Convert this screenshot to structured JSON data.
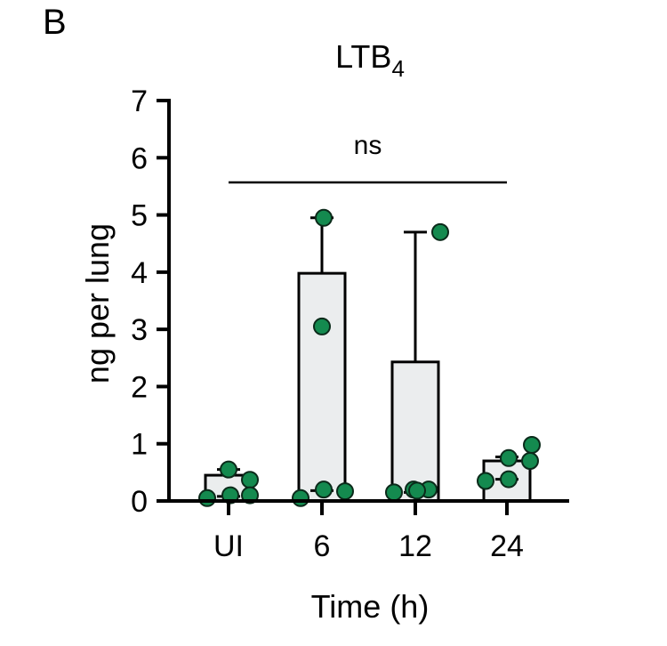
{
  "panel_label": "B",
  "chart_data": {
    "type": "bar",
    "title": "LTB",
    "title_subscript": "4",
    "xlabel": "Time (h)",
    "ylabel": "ng per lung",
    "ylim": [
      0,
      7
    ],
    "yticks": [
      0,
      1,
      2,
      3,
      4,
      5,
      6,
      7
    ],
    "categories": [
      "UI",
      "6",
      "12",
      "24"
    ],
    "values": [
      0.45,
      3.98,
      2.43,
      0.7
    ],
    "error_upper": [
      0.55,
      4.95,
      4.7,
      0.77
    ],
    "error_lower": [
      0.08,
      0.18,
      0.15,
      0.38
    ],
    "points": [
      [
        0.05,
        0.1,
        0.55,
        0.37,
        0.1
      ],
      [
        0.05,
        0.2,
        3.05,
        4.95,
        0.17
      ],
      [
        0.15,
        0.2,
        0.2,
        0.18,
        4.7
      ],
      [
        0.35,
        0.38,
        0.75,
        0.7,
        0.98
      ]
    ],
    "significance": {
      "label": "ns",
      "from": "UI",
      "to": "24"
    },
    "colors": {
      "bar_fill": "#ebedee",
      "bar_edge": "#000000",
      "point_fill": "#148a4f",
      "point_edge": "#0b2a1a"
    }
  }
}
